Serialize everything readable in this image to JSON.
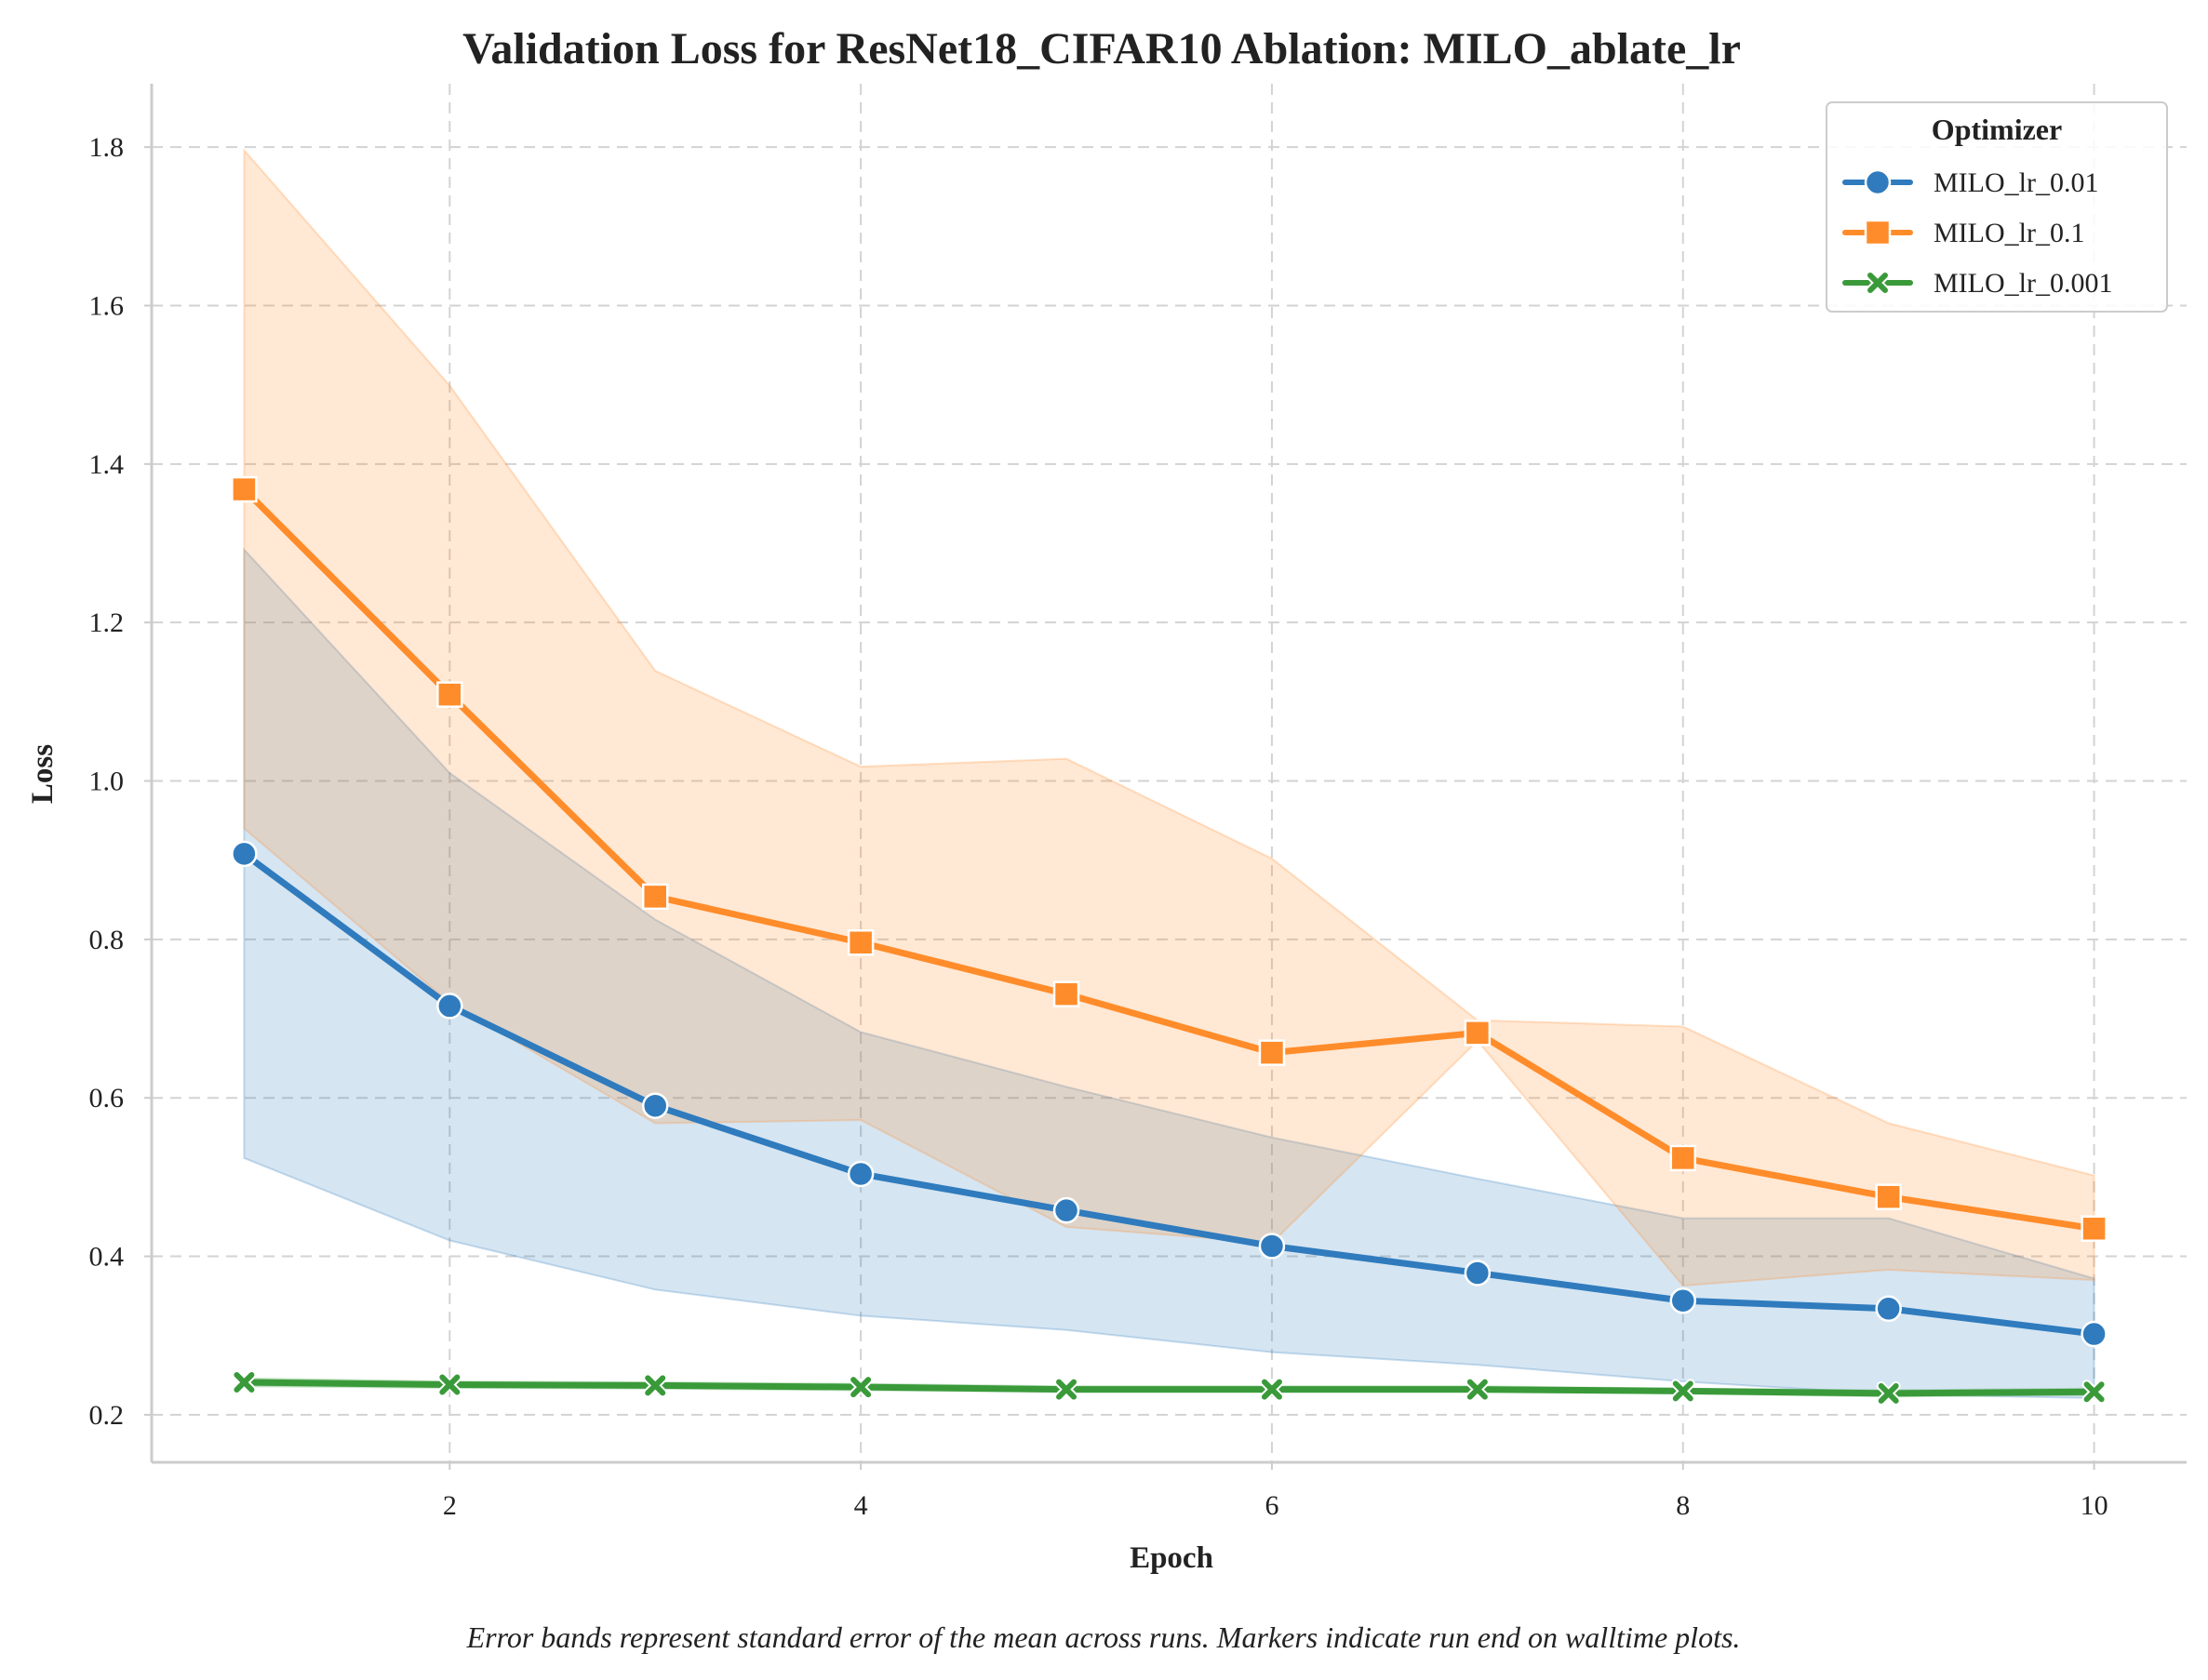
{
  "chart_data": {
    "type": "line",
    "title": "Validation Loss for ResNet18_CIFAR10 Ablation: MILO_ablate_lr",
    "xlabel": "Epoch",
    "ylabel": "Loss",
    "caption": "Error bands represent standard error of the mean across runs. Markers indicate run end on walltime plots.",
    "xlim": [
      0.55,
      10.45
    ],
    "ylim": [
      0.14,
      1.88
    ],
    "x_ticks": [
      2,
      4,
      6,
      8,
      10
    ],
    "y_ticks": [
      0.2,
      0.4,
      0.6,
      0.8,
      1.0,
      1.2,
      1.4,
      1.6,
      1.8
    ],
    "x_tick_labels": [
      "2",
      "4",
      "6",
      "8",
      "10"
    ],
    "y_tick_labels": [
      "0.2",
      "0.4",
      "0.6",
      "0.8",
      "1.0",
      "1.2",
      "1.4",
      "1.6",
      "1.8"
    ],
    "grid": true,
    "legend": {
      "title": "Optimizer",
      "position": "top-right"
    },
    "x": [
      1,
      2,
      3,
      4,
      5,
      6,
      7,
      8,
      9,
      10
    ],
    "series": [
      {
        "name": "MILO_lr_0.01",
        "color": "#2f7bbd",
        "marker": "circle",
        "values": [
          0.908,
          0.716,
          0.59,
          0.504,
          0.458,
          0.413,
          0.379,
          0.344,
          0.334,
          0.302
        ],
        "lower": [
          0.524,
          0.42,
          0.358,
          0.325,
          0.307,
          0.279,
          0.263,
          0.242,
          0.226,
          0.221
        ],
        "upper": [
          1.292,
          1.01,
          0.825,
          0.683,
          0.614,
          0.55,
          0.498,
          0.448,
          0.448,
          0.372
        ]
      },
      {
        "name": "MILO_lr_0.1",
        "color": "#ff8c2a",
        "marker": "square",
        "values": [
          1.368,
          1.109,
          0.854,
          0.796,
          0.731,
          0.657,
          0.682,
          0.524,
          0.475,
          0.435
        ],
        "lower": [
          0.94,
          0.72,
          0.568,
          0.572,
          0.437,
          0.417,
          0.672,
          0.363,
          0.383,
          0.37
        ],
        "upper": [
          1.796,
          1.499,
          1.139,
          1.018,
          1.028,
          0.902,
          0.698,
          0.69,
          0.568,
          0.502
        ]
      },
      {
        "name": "MILO_lr_0.001",
        "color": "#3a9a3a",
        "marker": "x",
        "values": [
          0.241,
          0.238,
          0.237,
          0.235,
          0.232,
          0.232,
          0.232,
          0.23,
          0.227,
          0.229
        ],
        "lower": [
          0.236,
          0.234,
          0.233,
          0.231,
          0.229,
          0.229,
          0.229,
          0.227,
          0.223,
          0.225
        ],
        "upper": [
          0.246,
          0.242,
          0.241,
          0.239,
          0.236,
          0.236,
          0.236,
          0.233,
          0.231,
          0.233
        ]
      }
    ]
  }
}
